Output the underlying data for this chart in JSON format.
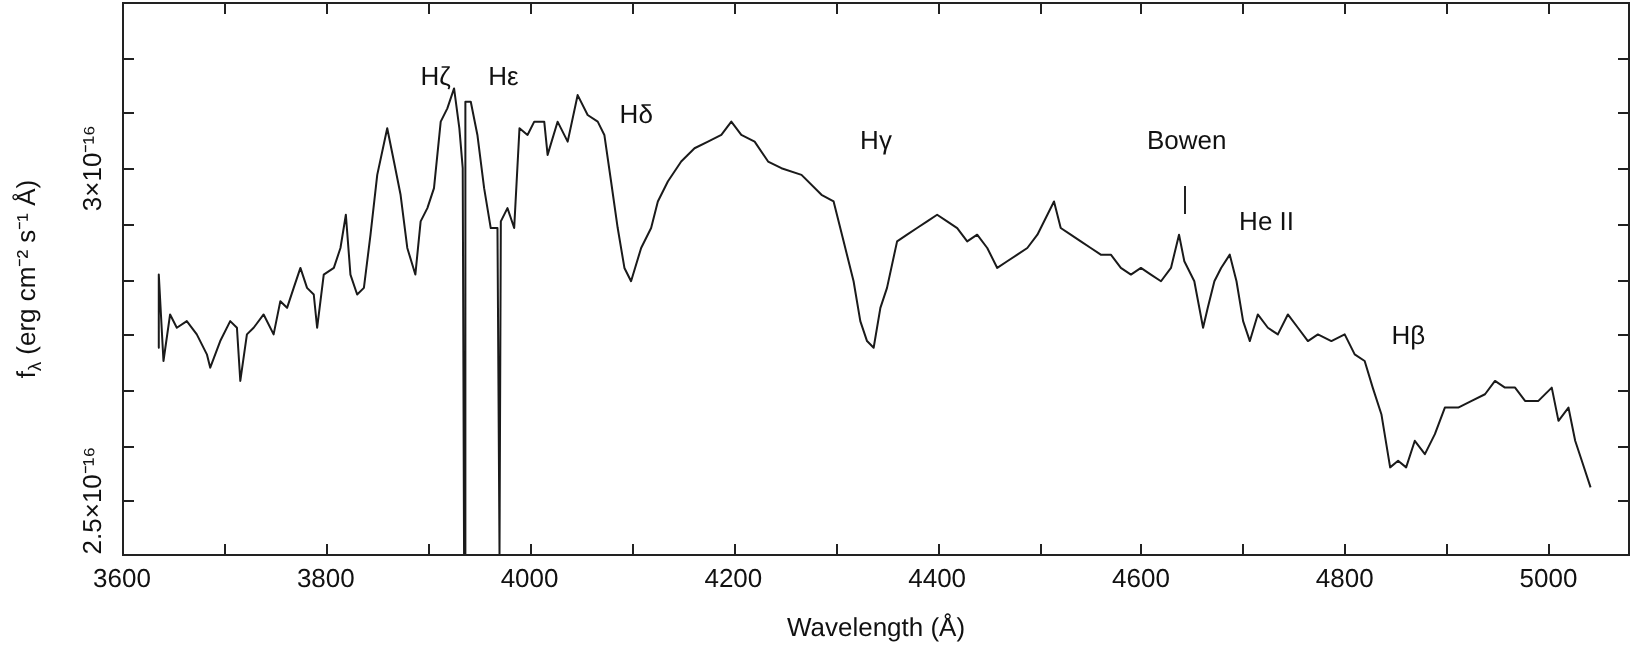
{
  "chart_data": {
    "type": "line",
    "xlabel": "Wavelength (Å)",
    "ylabel": "f$_{λ}$ (erg cm⁻² s⁻¹ Å)",
    "xlim": [
      3600,
      5080
    ],
    "xticks": [
      3600,
      {
        "value": 3700,
        "label": null
      },
      3800,
      {
        "value": 3900,
        "label": null
      },
      4000,
      {
        "value": 4100,
        "label": null
      },
      4200,
      {
        "value": 4300,
        "label": null
      },
      4400,
      {
        "value": 4500,
        "label": null
      },
      4600,
      {
        "value": 4700,
        "label": null
      },
      4800,
      {
        "value": 4900,
        "label": null
      },
      5000
    ],
    "ylim": [
      2.4167e-16,
      3.25e-16
    ],
    "yticks": [
      {
        "value": 2.5e-16,
        "label": "2.5×10⁻¹⁶"
      },
      {
        "value": 2.5833e-16,
        "label": null
      },
      {
        "value": 2.6667e-16,
        "label": null
      },
      {
        "value": 2.75e-16,
        "label": null
      },
      {
        "value": 2.8333e-16,
        "label": null
      },
      {
        "value": 2.9167e-16,
        "label": null
      },
      {
        "value": 3e-16,
        "label": "3×10⁻¹⁶"
      },
      {
        "value": 3.0833e-16,
        "label": null
      },
      {
        "value": 3.1667e-16,
        "label": null
      }
    ],
    "marker": "none",
    "line_style": "solid",
    "annotations": [
      "Hζ",
      "Hε",
      "Hδ",
      "Hγ",
      "Bowen",
      "He II",
      "Hβ"
    ],
    "series": [
      {
        "color": "#1a1a1a",
        "x": [
          3635.4,
          3636.1,
          3640.7,
          3647.2,
          3653.8,
          3663.6,
          3673.4,
          3683.3,
          3686.6,
          3696.4,
          3706.2,
          3712.8,
          3716.1,
          3722.6,
          3729.2,
          3739.0,
          3748.8,
          3755.4,
          3762.0,
          3768.5,
          3775.1,
          3781.6,
          3788.2,
          3791.5,
          3798.0,
          3807.9,
          3814.4,
          3819.7,
          3824.2,
          3830.8,
          3837.4,
          3843.9,
          3850.5,
          3860.3,
          3866.9,
          3873.4,
          3880.0,
          3887.9,
          3893.1,
          3899.7,
          3906.2,
          3912.8,
          3919.3,
          3925.9,
          3931.1,
          3934.4,
          3935.7,
          3937.0,
          3942.3,
          3948.8,
          3955.4,
          3961.9,
          3968.5,
          3970.5,
          3971.8,
          3978.3,
          3984.9,
          3990.1,
          3998.0,
          4004.6,
          4014.4,
          4017.7,
          4027.5,
          4037.4,
          4047.2,
          4057.0,
          4066.9,
          4073.4,
          4080.0,
          4086.5,
          4093.1,
          4099.6,
          4109.5,
          4119.3,
          4125.9,
          4135.7,
          4148.8,
          4161.9,
          4175.1,
          4188.2,
          4198.0,
          4207.8,
          4220.9,
          4234.1,
          4247.2,
          4266.9,
          4286.5,
          4298.4,
          4308.2,
          4318.0,
          4324.6,
          4331.2,
          4337.7,
          4344.3,
          4350.8,
          4360.7,
          4370.5,
          4380.3,
          4390.2,
          4400,
          4409.8,
          4419.7,
          4429.5,
          4439.3,
          4449.2,
          4459.0,
          4468.8,
          4478.7,
          4488.5,
          4498.4,
          4508.2,
          4514.7,
          4521.3,
          4531.1,
          4541.0,
          4550.8,
          4560.6,
          4570.5,
          4580.3,
          4590.2,
          4600,
          4609.8,
          4619.7,
          4629.5,
          4637.4,
          4642.6,
          4652.4,
          4661.0,
          4665.6,
          4672.1,
          4678.7,
          4687.2,
          4693.8,
          4700.3,
          4706.9,
          4714.7,
          4724.6,
          4734.4,
          4744.2,
          4754.1,
          4763.9,
          4773.7,
          4786.9,
          4800,
          4809.8,
          4819.6,
          4827.5,
          4836.0,
          4844.6,
          4852.4,
          4860.3,
          4868.8,
          4878.7,
          4888.5,
          4898.3,
          4911.4,
          4924.6,
          4937.7,
          4947.5,
          4957.3,
          4967.2,
          4977.0,
          4990.1,
          5003.2,
          5009.8,
          5019.6,
          5026.2,
          5032.7,
          5041.3
        ],
        "values": [
          2.73e-16,
          2.84e-16,
          2.71e-16,
          2.78e-16,
          2.76e-16,
          2.77e-16,
          2.75e-16,
          2.72e-16,
          2.7e-16,
          2.74e-16,
          2.77e-16,
          2.76e-16,
          2.68e-16,
          2.75e-16,
          2.76e-16,
          2.78e-16,
          2.75e-16,
          2.8e-16,
          2.79e-16,
          2.82e-16,
          2.85e-16,
          2.82e-16,
          2.81e-16,
          2.76e-16,
          2.84e-16,
          2.85e-16,
          2.88e-16,
          2.93e-16,
          2.84e-16,
          2.81e-16,
          2.82e-16,
          2.9e-16,
          2.99e-16,
          3.06e-16,
          3.01e-16,
          2.96e-16,
          2.88e-16,
          2.84e-16,
          2.92e-16,
          2.94e-16,
          2.97e-16,
          3.07e-16,
          3.09e-16,
          3.12e-16,
          3.06e-16,
          3e-16,
          2.42e-16,
          3.1e-16,
          3.1e-16,
          3.05e-16,
          2.97e-16,
          2.91e-16,
          2.91e-16,
          2.42e-16,
          2.92e-16,
          2.94e-16,
          2.91e-16,
          3.06e-16,
          3.05e-16,
          3.07e-16,
          3.07e-16,
          3.02e-16,
          3.07e-16,
          3.04e-16,
          3.11e-16,
          3.08e-16,
          3.07e-16,
          3.05e-16,
          2.98e-16,
          2.91e-16,
          2.85e-16,
          2.83e-16,
          2.88e-16,
          2.91e-16,
          2.95e-16,
          2.98e-16,
          3.01e-16,
          3.03e-16,
          3.04e-16,
          3.05e-16,
          3.07e-16,
          3.05e-16,
          3.04e-16,
          3.01e-16,
          3e-16,
          2.99e-16,
          2.96e-16,
          2.95e-16,
          2.89e-16,
          2.83e-16,
          2.77e-16,
          2.74e-16,
          2.73e-16,
          2.79e-16,
          2.82e-16,
          2.89e-16,
          2.9e-16,
          2.91e-16,
          2.92e-16,
          2.93e-16,
          2.92e-16,
          2.91e-16,
          2.89e-16,
          2.9e-16,
          2.88e-16,
          2.85e-16,
          2.86e-16,
          2.87e-16,
          2.88e-16,
          2.9e-16,
          2.93e-16,
          2.95e-16,
          2.91e-16,
          2.9e-16,
          2.89e-16,
          2.88e-16,
          2.87e-16,
          2.87e-16,
          2.85e-16,
          2.84e-16,
          2.85e-16,
          2.84e-16,
          2.83e-16,
          2.85e-16,
          2.9e-16,
          2.86e-16,
          2.83e-16,
          2.76e-16,
          2.79e-16,
          2.83e-16,
          2.85e-16,
          2.87e-16,
          2.83e-16,
          2.77e-16,
          2.74e-16,
          2.78e-16,
          2.76e-16,
          2.75e-16,
          2.78e-16,
          2.76e-16,
          2.74e-16,
          2.75e-16,
          2.74e-16,
          2.75e-16,
          2.72e-16,
          2.71e-16,
          2.67e-16,
          2.63e-16,
          2.55e-16,
          2.56e-16,
          2.55e-16,
          2.59e-16,
          2.57e-16,
          2.6e-16,
          2.64e-16,
          2.64e-16,
          2.65e-16,
          2.66e-16,
          2.68e-16,
          2.67e-16,
          2.67e-16,
          2.65e-16,
          2.65e-16,
          2.67e-16,
          2.62e-16,
          2.64e-16,
          2.59e-16,
          2.56e-16,
          2.52e-16
        ]
      }
    ]
  }
}
